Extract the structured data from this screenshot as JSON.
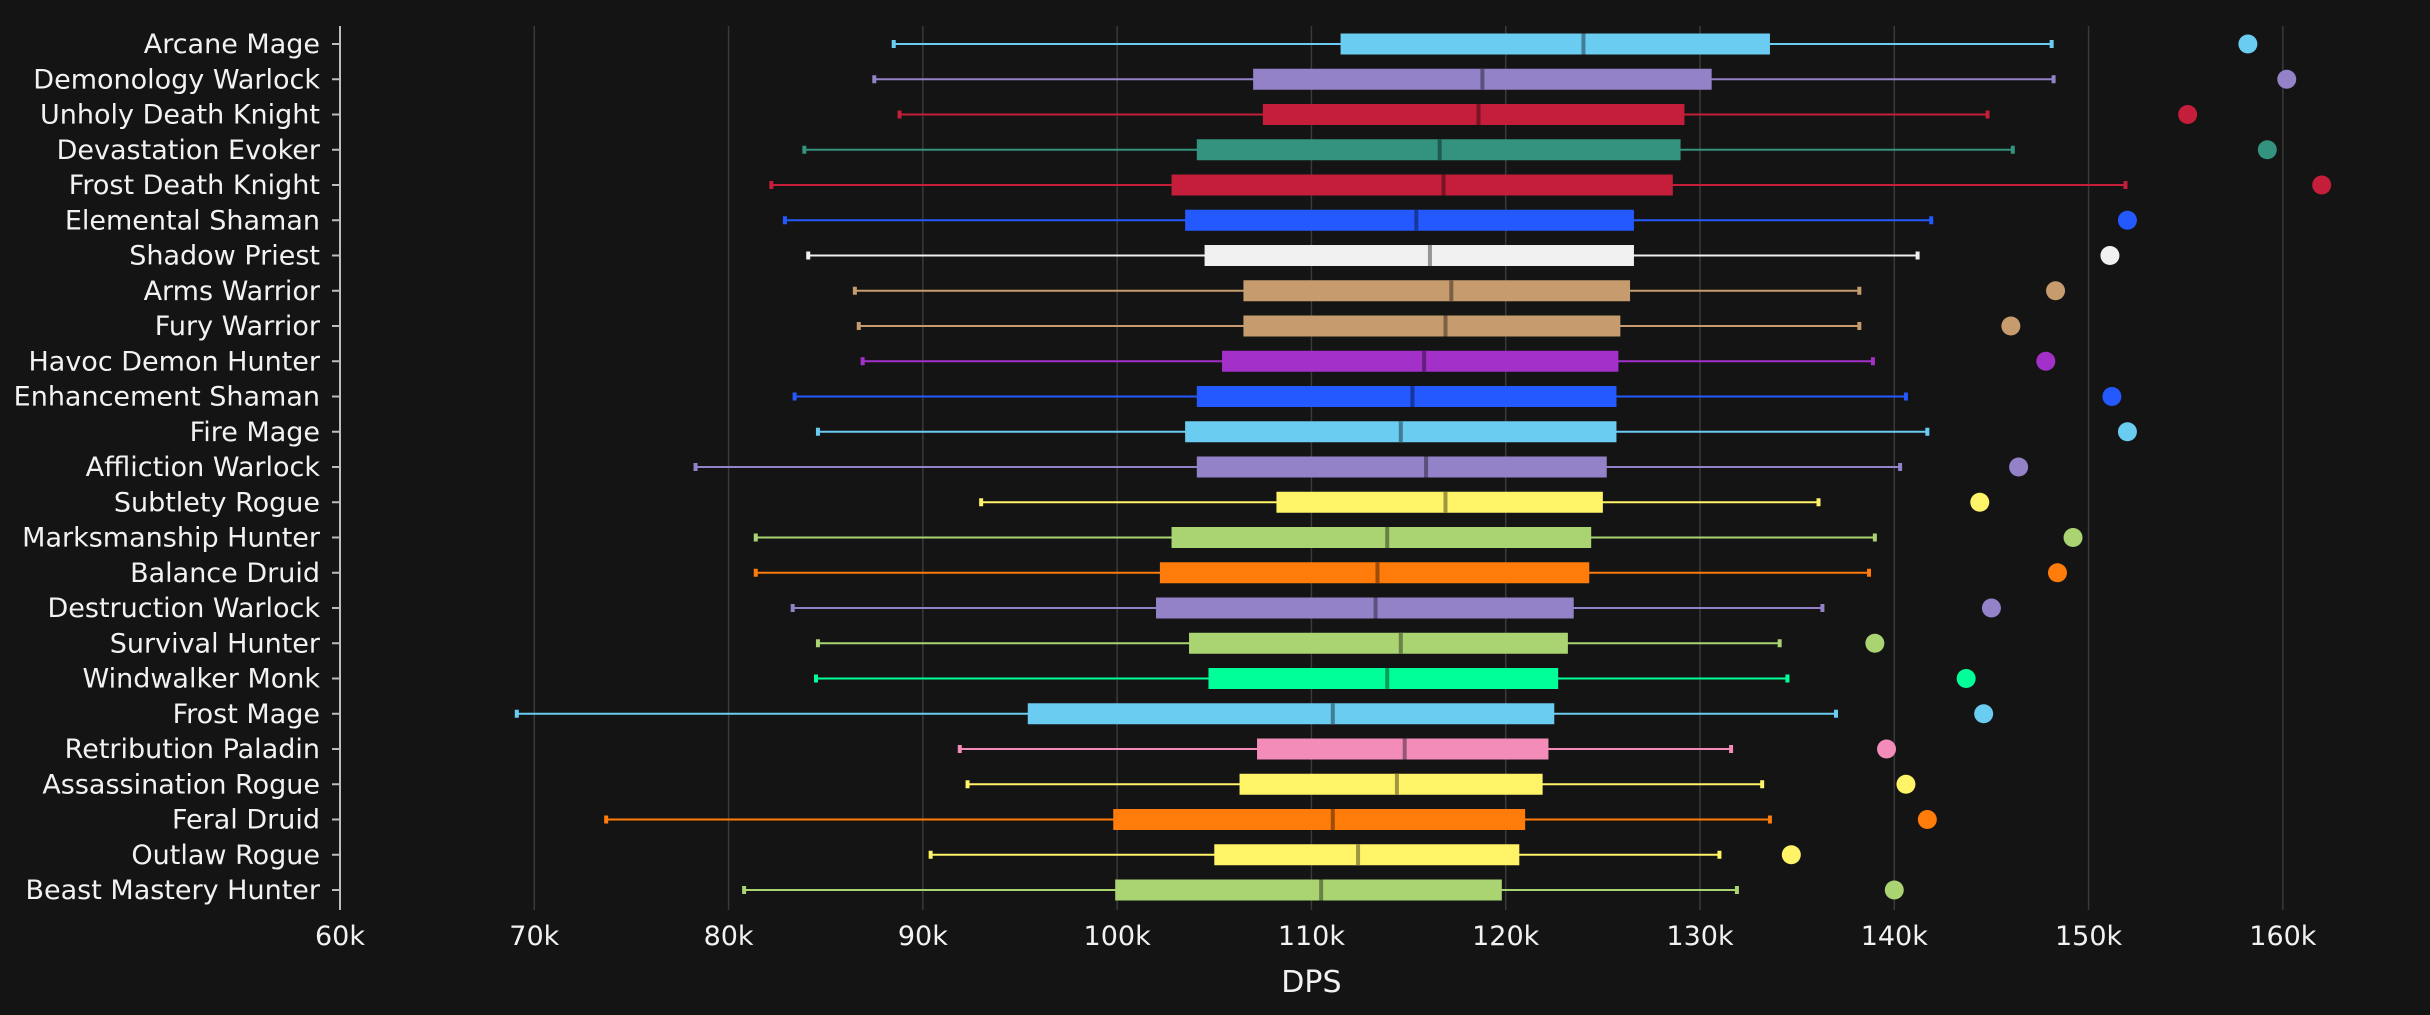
{
  "chart_data": {
    "type": "boxplot",
    "title": "",
    "xlabel": "DPS",
    "ylabel": "",
    "xlim": [
      60000,
      165000
    ],
    "x_ticks": [
      60000,
      70000,
      80000,
      90000,
      100000,
      110000,
      120000,
      130000,
      140000,
      150000,
      160000
    ],
    "x_tick_labels": [
      "60k",
      "70k",
      "80k",
      "90k",
      "100k",
      "110k",
      "120k",
      "130k",
      "140k",
      "150k",
      "160k"
    ],
    "grid": true,
    "legend": "none",
    "series": [
      {
        "name": "Arcane Mage",
        "color": "#69ccf0",
        "min": 88500,
        "q1": 111500,
        "median": 124000,
        "q3": 133600,
        "max": 148100,
        "max_point": 158200
      },
      {
        "name": "Demonology Warlock",
        "color": "#9482c9",
        "min": 87500,
        "q1": 107000,
        "median": 118800,
        "q3": 130600,
        "max": 148200,
        "max_point": 160200
      },
      {
        "name": "Unholy Death Knight",
        "color": "#c41e3a",
        "min": 88800,
        "q1": 107500,
        "median": 118600,
        "q3": 129200,
        "max": 144800,
        "max_point": 155100
      },
      {
        "name": "Devastation Evoker",
        "color": "#33937f",
        "min": 83900,
        "q1": 104100,
        "median": 116600,
        "q3": 129000,
        "max": 146100,
        "max_point": 159200
      },
      {
        "name": "Frost Death Knight",
        "color": "#c41e3a",
        "min": 82200,
        "q1": 102800,
        "median": 116800,
        "q3": 128600,
        "max": 151900,
        "max_point": 162000
      },
      {
        "name": "Elemental Shaman",
        "color": "#2459ff",
        "min": 82900,
        "q1": 103500,
        "median": 115400,
        "q3": 126600,
        "max": 141900,
        "max_point": 152000
      },
      {
        "name": "Shadow Priest",
        "color": "#f0f0f0",
        "min": 84100,
        "q1": 104500,
        "median": 116100,
        "q3": 126600,
        "max": 141200,
        "max_point": 151100
      },
      {
        "name": "Arms Warrior",
        "color": "#c69b6d",
        "min": 86500,
        "q1": 106500,
        "median": 117200,
        "q3": 126400,
        "max": 138200,
        "max_point": 148300
      },
      {
        "name": "Fury Warrior",
        "color": "#c69b6d",
        "min": 86700,
        "q1": 106500,
        "median": 116900,
        "q3": 125900,
        "max": 138200,
        "max_point": 146000
      },
      {
        "name": "Havoc Demon Hunter",
        "color": "#a330c9",
        "min": 86900,
        "q1": 105400,
        "median": 115800,
        "q3": 125800,
        "max": 138900,
        "max_point": 147800
      },
      {
        "name": "Enhancement Shaman",
        "color": "#2459ff",
        "min": 83400,
        "q1": 104100,
        "median": 115200,
        "q3": 125700,
        "max": 140600,
        "max_point": 151200
      },
      {
        "name": "Fire Mage",
        "color": "#69ccf0",
        "min": 84600,
        "q1": 103500,
        "median": 114600,
        "q3": 125700,
        "max": 141700,
        "max_point": 152000
      },
      {
        "name": "Affliction Warlock",
        "color": "#9482c9",
        "min": 78300,
        "q1": 104100,
        "median": 115900,
        "q3": 125200,
        "max": 140300,
        "max_point": 146400
      },
      {
        "name": "Subtlety Rogue",
        "color": "#fff468",
        "min": 93000,
        "q1": 108200,
        "median": 116900,
        "q3": 125000,
        "max": 136100,
        "max_point": 144400
      },
      {
        "name": "Marksmanship Hunter",
        "color": "#aad372",
        "min": 81400,
        "q1": 102800,
        "median": 113900,
        "q3": 124400,
        "max": 139000,
        "max_point": 149200
      },
      {
        "name": "Balance Druid",
        "color": "#ff7c0a",
        "min": 81400,
        "q1": 102200,
        "median": 113400,
        "q3": 124300,
        "max": 138700,
        "max_point": 148400
      },
      {
        "name": "Destruction Warlock",
        "color": "#9482c9",
        "min": 83300,
        "q1": 102000,
        "median": 113300,
        "q3": 123500,
        "max": 136300,
        "max_point": 145000
      },
      {
        "name": "Survival Hunter",
        "color": "#aad372",
        "min": 84600,
        "q1": 103700,
        "median": 114600,
        "q3": 123200,
        "max": 134100,
        "max_point": 139000
      },
      {
        "name": "Windwalker Monk",
        "color": "#00ff98",
        "min": 84500,
        "q1": 104700,
        "median": 113900,
        "q3": 122700,
        "max": 134500,
        "max_point": 143700
      },
      {
        "name": "Frost Mage",
        "color": "#69ccf0",
        "min": 69100,
        "q1": 95400,
        "median": 111100,
        "q3": 122500,
        "max": 137000,
        "max_point": 144600
      },
      {
        "name": "Retribution Paladin",
        "color": "#f48cba",
        "min": 91900,
        "q1": 107200,
        "median": 114800,
        "q3": 122200,
        "max": 131600,
        "max_point": 139600
      },
      {
        "name": "Assassination Rogue",
        "color": "#fff468",
        "min": 92300,
        "q1": 106300,
        "median": 114400,
        "q3": 121900,
        "max": 133200,
        "max_point": 140600
      },
      {
        "name": "Feral Druid",
        "color": "#ff7c0a",
        "min": 73700,
        "q1": 99800,
        "median": 111100,
        "q3": 121000,
        "max": 133600,
        "max_point": 141700
      },
      {
        "name": "Outlaw Rogue",
        "color": "#fff468",
        "min": 90400,
        "q1": 105000,
        "median": 112400,
        "q3": 120700,
        "max": 131000,
        "max_point": 134700
      },
      {
        "name": "Beast Mastery Hunter",
        "color": "#aad372",
        "min": 80800,
        "q1": 99900,
        "median": 110500,
        "q3": 119800,
        "max": 131900,
        "max_point": 140000
      }
    ]
  }
}
